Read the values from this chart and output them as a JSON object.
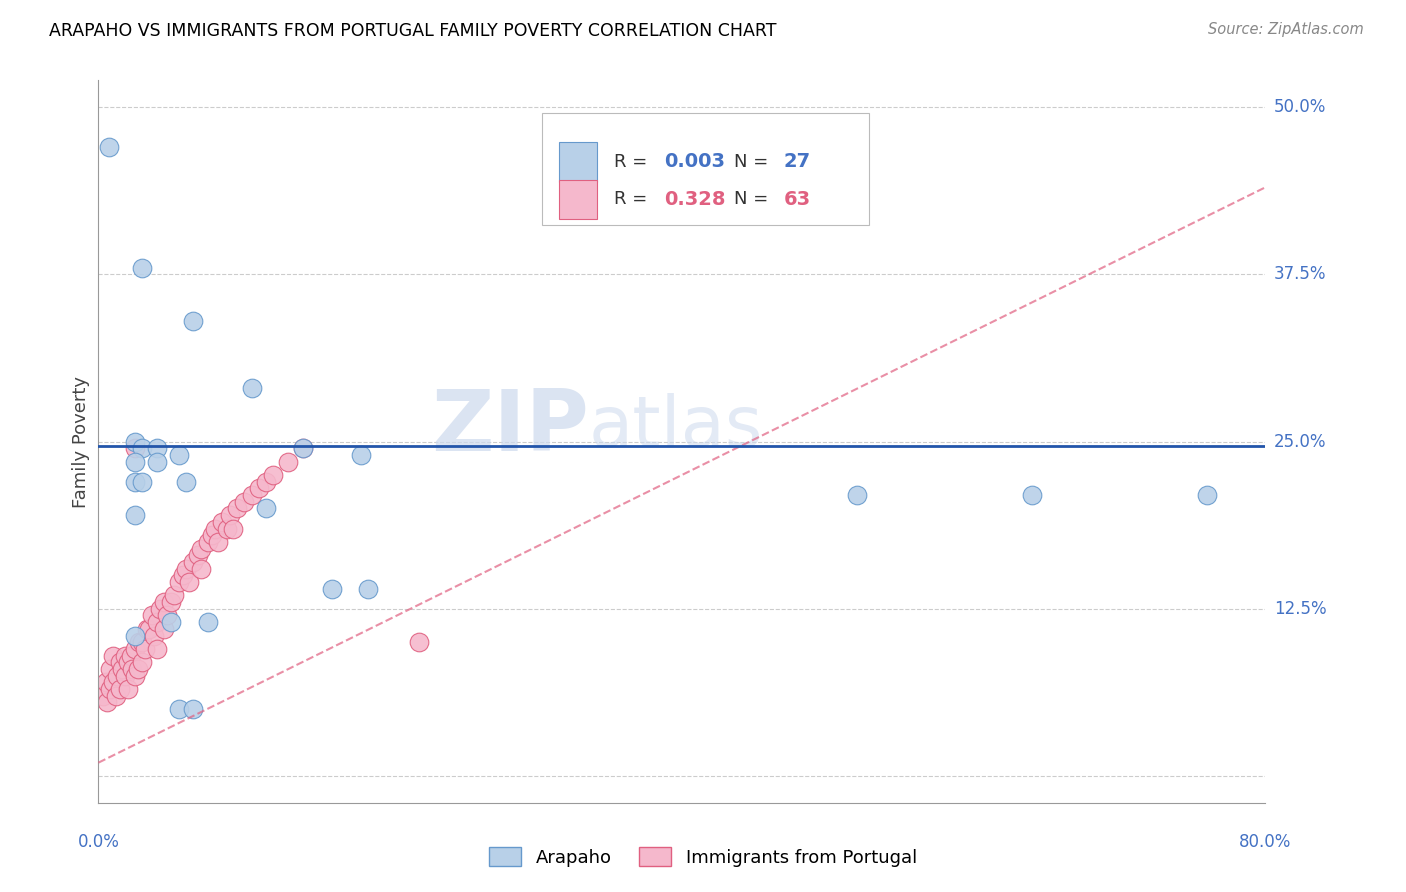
{
  "title": "ARAPAHO VS IMMIGRANTS FROM PORTUGAL FAMILY POVERTY CORRELATION CHART",
  "source": "Source: ZipAtlas.com",
  "ylabel": "Family Poverty",
  "color_arapaho_fill": "#b8d0e8",
  "color_arapaho_edge": "#6699cc",
  "color_portugal_fill": "#f5b8cc",
  "color_portugal_edge": "#e06080",
  "color_line_arapaho": "#2255aa",
  "color_line_portugal": "#e06080",
  "color_grid": "#cccccc",
  "color_ytick": "#4472c4",
  "xlim": [
    0.0,
    0.8
  ],
  "ylim": [
    -0.02,
    0.52
  ],
  "arapaho_line_y": [
    0.247,
    0.247
  ],
  "portugal_line": [
    0.0,
    0.8,
    0.01,
    0.44
  ],
  "arapaho_x": [
    0.007,
    0.03,
    0.065,
    0.105,
    0.14,
    0.18,
    0.025,
    0.03,
    0.04,
    0.055,
    0.025,
    0.03,
    0.06,
    0.025,
    0.025,
    0.05,
    0.075,
    0.16,
    0.185,
    0.025,
    0.04,
    0.52,
    0.64,
    0.76,
    0.055,
    0.065,
    0.115
  ],
  "arapaho_y": [
    0.47,
    0.38,
    0.34,
    0.29,
    0.245,
    0.24,
    0.25,
    0.245,
    0.245,
    0.24,
    0.22,
    0.22,
    0.22,
    0.195,
    0.105,
    0.115,
    0.115,
    0.14,
    0.14,
    0.235,
    0.235,
    0.21,
    0.21,
    0.21,
    0.05,
    0.05,
    0.2
  ],
  "portugal_x": [
    0.003,
    0.005,
    0.006,
    0.008,
    0.008,
    0.01,
    0.01,
    0.012,
    0.013,
    0.015,
    0.015,
    0.016,
    0.018,
    0.018,
    0.02,
    0.02,
    0.022,
    0.023,
    0.025,
    0.025,
    0.027,
    0.028,
    0.03,
    0.03,
    0.032,
    0.033,
    0.035,
    0.037,
    0.038,
    0.04,
    0.04,
    0.042,
    0.045,
    0.045,
    0.047,
    0.05,
    0.052,
    0.055,
    0.058,
    0.06,
    0.062,
    0.065,
    0.068,
    0.07,
    0.07,
    0.075,
    0.078,
    0.08,
    0.082,
    0.085,
    0.088,
    0.09,
    0.092,
    0.095,
    0.1,
    0.105,
    0.11,
    0.115,
    0.12,
    0.13,
    0.14,
    0.22,
    0.025
  ],
  "portugal_y": [
    0.06,
    0.07,
    0.055,
    0.08,
    0.065,
    0.09,
    0.07,
    0.06,
    0.075,
    0.085,
    0.065,
    0.08,
    0.075,
    0.09,
    0.085,
    0.065,
    0.09,
    0.08,
    0.095,
    0.075,
    0.08,
    0.1,
    0.1,
    0.085,
    0.095,
    0.11,
    0.11,
    0.12,
    0.105,
    0.115,
    0.095,
    0.125,
    0.13,
    0.11,
    0.12,
    0.13,
    0.135,
    0.145,
    0.15,
    0.155,
    0.145,
    0.16,
    0.165,
    0.17,
    0.155,
    0.175,
    0.18,
    0.185,
    0.175,
    0.19,
    0.185,
    0.195,
    0.185,
    0.2,
    0.205,
    0.21,
    0.215,
    0.22,
    0.225,
    0.235,
    0.245,
    0.1,
    0.245
  ]
}
